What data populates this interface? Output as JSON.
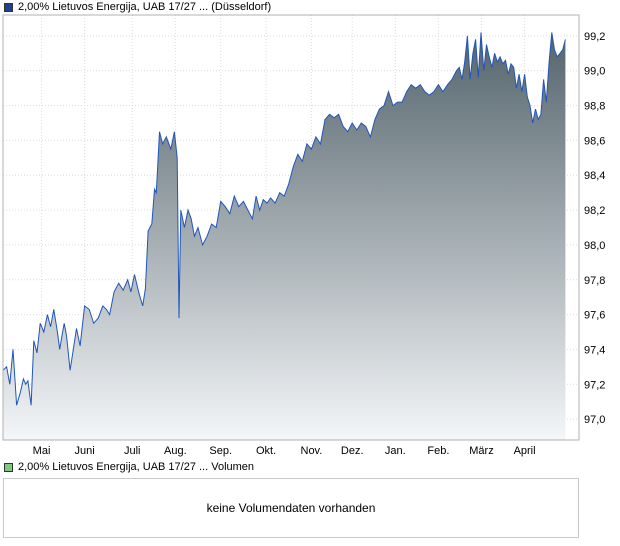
{
  "legend": {
    "price_label": "2,00% Lietuvos Energija, UAB 17/27 ... (Düsseldorf)",
    "price_color": "#1f3f8f",
    "volume_label": "2,00% Lietuvos Energija, UAB 17/27 ... Volumen",
    "volume_color": "#7fc97f"
  },
  "volume": {
    "message": "keine Volumendaten vorhanden"
  },
  "chart_data": {
    "type": "area",
    "title": "",
    "xlabel": "",
    "ylabel": "",
    "grid": true,
    "y_axis_side": "right",
    "ylim": [
      96.88,
      99.32
    ],
    "yticks": [
      "97,0",
      "97,2",
      "97,4",
      "97,6",
      "97,8",
      "98,0",
      "98,2",
      "98,4",
      "98,6",
      "98,8",
      "99,0",
      "99,2"
    ],
    "ytick_values": [
      97.0,
      97.2,
      97.4,
      97.6,
      97.8,
      98.0,
      98.2,
      98.4,
      98.6,
      98.8,
      99.0,
      99.2
    ],
    "xlim": [
      0,
      12.7
    ],
    "xticks": [
      "Mai",
      "Juni",
      "Juli",
      "Aug.",
      "Sep.",
      "Okt.",
      "Nov.",
      "Dez.",
      "Jan.",
      "Feb.",
      "März",
      "April"
    ],
    "xtick_positions": [
      0.85,
      1.8,
      2.85,
      3.8,
      4.8,
      5.8,
      6.8,
      7.7,
      8.65,
      9.6,
      10.55,
      11.5
    ],
    "line_color": "#2255bb",
    "fill_top_color": "#54646c",
    "fill_bottom_color": "#f4f6f8",
    "series": [
      {
        "values": [
          [
            0.0,
            97.28
          ],
          [
            0.08,
            97.3
          ],
          [
            0.15,
            97.2
          ],
          [
            0.22,
            97.4
          ],
          [
            0.3,
            97.08
          ],
          [
            0.38,
            97.15
          ],
          [
            0.45,
            97.23
          ],
          [
            0.5,
            97.2
          ],
          [
            0.55,
            97.22
          ],
          [
            0.62,
            97.08
          ],
          [
            0.68,
            97.45
          ],
          [
            0.75,
            97.38
          ],
          [
            0.82,
            97.55
          ],
          [
            0.9,
            97.5
          ],
          [
            0.98,
            97.6
          ],
          [
            1.05,
            97.53
          ],
          [
            1.12,
            97.63
          ],
          [
            1.2,
            97.5
          ],
          [
            1.25,
            97.4
          ],
          [
            1.3,
            97.48
          ],
          [
            1.35,
            97.55
          ],
          [
            1.4,
            97.48
          ],
          [
            1.48,
            97.28
          ],
          [
            1.55,
            97.4
          ],
          [
            1.62,
            97.52
          ],
          [
            1.7,
            97.42
          ],
          [
            1.8,
            97.65
          ],
          [
            1.9,
            97.63
          ],
          [
            2.0,
            97.55
          ],
          [
            2.1,
            97.58
          ],
          [
            2.2,
            97.65
          ],
          [
            2.28,
            97.63
          ],
          [
            2.35,
            97.6
          ],
          [
            2.45,
            97.73
          ],
          [
            2.55,
            97.78
          ],
          [
            2.65,
            97.74
          ],
          [
            2.75,
            97.8
          ],
          [
            2.82,
            97.73
          ],
          [
            2.9,
            97.83
          ],
          [
            3.0,
            97.72
          ],
          [
            3.08,
            97.65
          ],
          [
            3.14,
            97.75
          ],
          [
            3.2,
            98.08
          ],
          [
            3.28,
            98.12
          ],
          [
            3.34,
            98.32
          ],
          [
            3.38,
            98.3
          ],
          [
            3.45,
            98.65
          ],
          [
            3.52,
            98.58
          ],
          [
            3.6,
            98.62
          ],
          [
            3.7,
            98.55
          ],
          [
            3.78,
            98.65
          ],
          [
            3.84,
            98.5
          ],
          [
            3.88,
            97.58
          ],
          [
            3.92,
            98.2
          ],
          [
            4.0,
            98.1
          ],
          [
            4.08,
            98.2
          ],
          [
            4.15,
            98.15
          ],
          [
            4.22,
            98.05
          ],
          [
            4.3,
            98.1
          ],
          [
            4.4,
            98.0
          ],
          [
            4.5,
            98.05
          ],
          [
            4.6,
            98.12
          ],
          [
            4.7,
            98.1
          ],
          [
            4.8,
            98.25
          ],
          [
            4.9,
            98.22
          ],
          [
            5.0,
            98.18
          ],
          [
            5.1,
            98.28
          ],
          [
            5.2,
            98.22
          ],
          [
            5.3,
            98.25
          ],
          [
            5.4,
            98.2
          ],
          [
            5.5,
            98.15
          ],
          [
            5.58,
            98.28
          ],
          [
            5.66,
            98.2
          ],
          [
            5.74,
            98.26
          ],
          [
            5.82,
            98.24
          ],
          [
            5.9,
            98.27
          ],
          [
            6.0,
            98.24
          ],
          [
            6.1,
            98.3
          ],
          [
            6.2,
            98.28
          ],
          [
            6.3,
            98.35
          ],
          [
            6.4,
            98.45
          ],
          [
            6.5,
            98.52
          ],
          [
            6.6,
            98.48
          ],
          [
            6.7,
            98.58
          ],
          [
            6.8,
            98.55
          ],
          [
            6.9,
            98.62
          ],
          [
            7.0,
            98.58
          ],
          [
            7.1,
            98.72
          ],
          [
            7.2,
            98.75
          ],
          [
            7.3,
            98.73
          ],
          [
            7.4,
            98.75
          ],
          [
            7.5,
            98.68
          ],
          [
            7.6,
            98.65
          ],
          [
            7.7,
            98.7
          ],
          [
            7.8,
            98.66
          ],
          [
            7.9,
            98.7
          ],
          [
            8.0,
            98.68
          ],
          [
            8.1,
            98.62
          ],
          [
            8.2,
            98.72
          ],
          [
            8.3,
            98.78
          ],
          [
            8.4,
            98.8
          ],
          [
            8.5,
            98.88
          ],
          [
            8.6,
            98.8
          ],
          [
            8.7,
            98.82
          ],
          [
            8.8,
            98.82
          ],
          [
            8.9,
            98.88
          ],
          [
            9.0,
            98.92
          ],
          [
            9.1,
            98.9
          ],
          [
            9.2,
            98.92
          ],
          [
            9.3,
            98.88
          ],
          [
            9.4,
            98.86
          ],
          [
            9.5,
            98.88
          ],
          [
            9.6,
            98.92
          ],
          [
            9.7,
            98.88
          ],
          [
            9.8,
            98.92
          ],
          [
            9.9,
            98.95
          ],
          [
            10.0,
            99.0
          ],
          [
            10.06,
            99.02
          ],
          [
            10.12,
            98.95
          ],
          [
            10.18,
            99.05
          ],
          [
            10.24,
            99.2
          ],
          [
            10.3,
            98.95
          ],
          [
            10.36,
            99.1
          ],
          [
            10.42,
            99.18
          ],
          [
            10.48,
            98.96
          ],
          [
            10.54,
            99.22
          ],
          [
            10.6,
            99.0
          ],
          [
            10.66,
            99.15
          ],
          [
            10.72,
            99.08
          ],
          [
            10.78,
            99.02
          ],
          [
            10.84,
            99.1
          ],
          [
            10.9,
            99.05
          ],
          [
            10.96,
            99.08
          ],
          [
            11.02,
            99.04
          ],
          [
            11.08,
            99.06
          ],
          [
            11.14,
            98.98
          ],
          [
            11.2,
            99.04
          ],
          [
            11.26,
            99.02
          ],
          [
            11.32,
            98.9
          ],
          [
            11.38,
            98.98
          ],
          [
            11.44,
            98.88
          ],
          [
            11.5,
            98.98
          ],
          [
            11.56,
            98.85
          ],
          [
            11.62,
            98.8
          ],
          [
            11.68,
            98.7
          ],
          [
            11.74,
            98.78
          ],
          [
            11.8,
            98.72
          ],
          [
            11.86,
            98.75
          ],
          [
            11.92,
            98.95
          ],
          [
            11.98,
            98.82
          ],
          [
            12.04,
            99.05
          ],
          [
            12.1,
            99.22
          ],
          [
            12.16,
            99.12
          ],
          [
            12.22,
            99.08
          ],
          [
            12.28,
            99.1
          ],
          [
            12.34,
            99.12
          ],
          [
            12.4,
            99.18
          ]
        ]
      }
    ]
  }
}
